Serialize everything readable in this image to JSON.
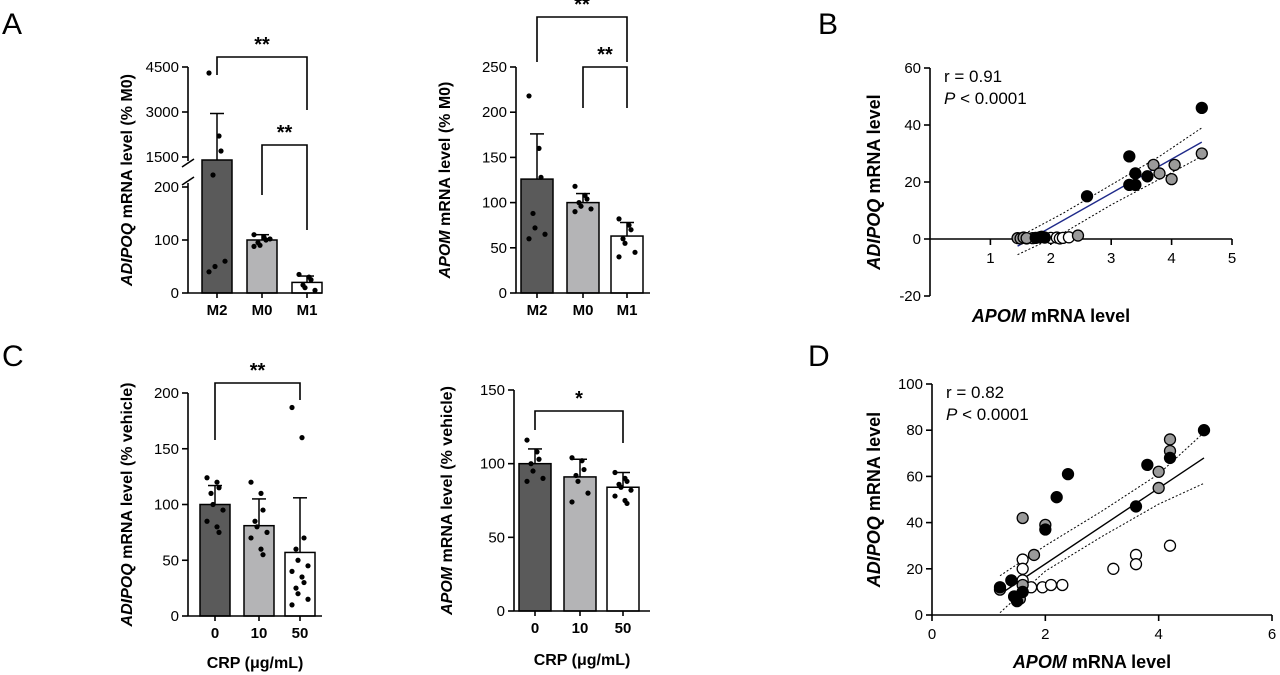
{
  "panel_letters": [
    "A",
    "B",
    "C",
    "D"
  ],
  "chart_data": [
    {
      "id": "A1",
      "type": "bar",
      "categories": [
        "M2",
        "M0",
        "M1"
      ],
      "values": [
        1400,
        100,
        20
      ],
      "errors": [
        1550,
        10,
        12
      ],
      "points": [
        [
          4300,
          2200,
          1700,
          900,
          50,
          60,
          40
        ],
        [
          110,
          105,
          100,
          95,
          90,
          102,
          88
        ],
        [
          35,
          30,
          25,
          15,
          10,
          5
        ]
      ],
      "ylabel_italic": "ADIPOQ",
      "ylabel_rest": " mRNA level (% M0)",
      "broken_axis": true,
      "lower_ticks": [
        "0",
        "100",
        "200"
      ],
      "upper_ticks": [
        "1500",
        "3000",
        "4500"
      ],
      "significance": [
        {
          "from": 0,
          "to": 2,
          "label": "**"
        },
        {
          "from": 1,
          "to": 2,
          "label": "**"
        }
      ],
      "colors": [
        "#5a5a5a",
        "#b4b4b6",
        "#ffffff"
      ]
    },
    {
      "id": "A2",
      "type": "bar",
      "categories": [
        "M2",
        "M0",
        "M1"
      ],
      "values": [
        126,
        100,
        63
      ],
      "errors": [
        50,
        10,
        15
      ],
      "points": [
        [
          218,
          160,
          128,
          88,
          72,
          65,
          60
        ],
        [
          118,
          108,
          104,
          100,
          96,
          93,
          90
        ],
        [
          82,
          75,
          70,
          60,
          55,
          45,
          40
        ]
      ],
      "ylabel_italic": "APOM",
      "ylabel_rest": " mRNA level (% M0)",
      "ylim": [
        0,
        250
      ],
      "yticks": [
        0,
        50,
        100,
        150,
        200,
        250
      ],
      "significance": [
        {
          "from": 0,
          "to": 2,
          "label": "**"
        },
        {
          "from": 1,
          "to": 2,
          "label": "**"
        }
      ],
      "colors": [
        "#5a5a5a",
        "#b4b4b6",
        "#ffffff"
      ]
    },
    {
      "id": "B",
      "type": "scatter",
      "xlim": [
        0,
        5
      ],
      "ylim": [
        -20,
        60
      ],
      "xticks": [
        1,
        2,
        3,
        4,
        5
      ],
      "yticks": [
        -20,
        0,
        20,
        40,
        60
      ],
      "xlabel_italic": "APOM",
      "xlabel_rest": " mRNA level",
      "ylabel_italic": "ADIPOQ",
      "ylabel_rest": " mRNA level",
      "r_text": "r = 0.91",
      "p_italic": "P",
      "p_rest": " < 0.0001",
      "fit": {
        "x": [
          1.45,
          4.5
        ],
        "y": [
          -2.5,
          34
        ]
      },
      "ci_upper": {
        "x": [
          1.45,
          2.2,
          3.0,
          3.8,
          4.5
        ],
        "y": [
          0.5,
          9,
          19,
          29,
          39
        ]
      },
      "ci_lower": {
        "x": [
          1.45,
          2.2,
          3.0,
          3.8,
          4.5
        ],
        "y": [
          -5.5,
          2,
          12,
          21,
          29
        ]
      },
      "black": [
        [
          1.75,
          0.4
        ],
        [
          1.82,
          0.6
        ],
        [
          1.9,
          0.5
        ],
        [
          2.6,
          15
        ],
        [
          3.3,
          29
        ],
        [
          3.3,
          19
        ],
        [
          3.4,
          23
        ],
        [
          3.4,
          19
        ],
        [
          3.6,
          22
        ],
        [
          4.5,
          46
        ]
      ],
      "gray": [
        [
          1.45,
          0.3
        ],
        [
          1.5,
          0.2
        ],
        [
          1.55,
          0.5
        ],
        [
          1.6,
          0.3
        ],
        [
          1.85,
          0.8
        ],
        [
          2.45,
          1.2
        ],
        [
          3.7,
          26
        ],
        [
          3.8,
          23
        ],
        [
          4.0,
          21
        ],
        [
          4.05,
          26
        ],
        [
          4.5,
          30
        ]
      ],
      "white": [
        [
          1.6,
          0.2
        ],
        [
          1.7,
          0.3
        ],
        [
          2.0,
          0.4
        ],
        [
          2.1,
          0.5
        ],
        [
          2.15,
          0.2
        ],
        [
          2.2,
          0.4
        ],
        [
          2.3,
          0.6
        ]
      ],
      "line_color": "#1f2a8a"
    },
    {
      "id": "C1",
      "type": "bar",
      "categories": [
        "0",
        "10",
        "50"
      ],
      "values": [
        100,
        81,
        57
      ],
      "errors": [
        17,
        24,
        49
      ],
      "points": [
        [
          124,
          120,
          115,
          110,
          100,
          95,
          85,
          80,
          75
        ],
        [
          120,
          110,
          95,
          85,
          80,
          75,
          70,
          60,
          55
        ],
        [
          187,
          160,
          70,
          60,
          50,
          45,
          40,
          35,
          30,
          25,
          20,
          15,
          10
        ]
      ],
      "ylabel_italic": "ADIPOQ",
      "ylabel_rest": " mRNA level (% vehicle)",
      "xlabel": "CRP (μg/mL)",
      "ylim": [
        0,
        200
      ],
      "yticks": [
        0,
        50,
        100,
        150,
        200
      ],
      "significance": [
        {
          "from": 0,
          "to": 2,
          "label": "**"
        }
      ],
      "colors": [
        "#5a5a5a",
        "#b4b4b6",
        "#ffffff"
      ]
    },
    {
      "id": "C2",
      "type": "bar",
      "categories": [
        "0",
        "10",
        "50"
      ],
      "values": [
        100,
        91,
        84
      ],
      "errors": [
        10,
        12,
        10
      ],
      "points": [
        [
          116,
          108,
          103,
          100,
          95,
          90,
          88
        ],
        [
          104,
          102,
          96,
          92,
          88,
          80,
          74
        ],
        [
          94,
          90,
          88,
          86,
          84,
          82,
          78,
          75,
          73
        ]
      ],
      "ylabel_italic": "APOM",
      "ylabel_rest": " mRNA level (% vehicle)",
      "xlabel": "CRP (μg/mL)",
      "ylim": [
        0,
        150
      ],
      "yticks": [
        0,
        50,
        100,
        150
      ],
      "significance": [
        {
          "from": 0,
          "to": 2,
          "label": "*"
        }
      ],
      "colors": [
        "#5a5a5a",
        "#b4b4b6",
        "#ffffff"
      ]
    },
    {
      "id": "D",
      "type": "scatter",
      "xlim": [
        0,
        6
      ],
      "ylim": [
        0,
        100
      ],
      "xticks": [
        0,
        2,
        4,
        6
      ],
      "yticks": [
        0,
        20,
        40,
        60,
        80,
        100
      ],
      "xlabel_italic": "APOM",
      "xlabel_rest": " mRNA level",
      "ylabel_italic": "ADIPOQ",
      "ylabel_rest": " mRNA level",
      "r_text": "r = 0.82",
      "p_italic": "P",
      "p_rest": " < 0.0001",
      "fit": {
        "x": [
          1.2,
          4.8
        ],
        "y": [
          9,
          68
        ]
      },
      "ci_upper": {
        "x": [
          1.2,
          2.0,
          3.0,
          4.0,
          4.8
        ],
        "y": [
          17,
          30,
          45,
          61,
          79
        ]
      },
      "ci_lower": {
        "x": [
          1.2,
          2.0,
          3.0,
          4.0,
          4.8
        ],
        "y": [
          1,
          19,
          34,
          48,
          57
        ]
      },
      "black": [
        [
          1.2,
          12
        ],
        [
          1.4,
          15
        ],
        [
          1.45,
          8
        ],
        [
          1.5,
          6
        ],
        [
          1.6,
          10
        ],
        [
          2.0,
          37
        ],
        [
          2.2,
          51
        ],
        [
          2.4,
          61
        ],
        [
          3.6,
          47
        ],
        [
          3.8,
          65
        ],
        [
          4.2,
          68
        ],
        [
          4.8,
          80
        ]
      ],
      "gray": [
        [
          1.2,
          11
        ],
        [
          1.45,
          8
        ],
        [
          1.55,
          7
        ],
        [
          1.6,
          42
        ],
        [
          1.6,
          13
        ],
        [
          1.8,
          26
        ],
        [
          2.0,
          39
        ],
        [
          4.0,
          62
        ],
        [
          4.0,
          55
        ],
        [
          4.2,
          76
        ],
        [
          4.2,
          71
        ]
      ],
      "white": [
        [
          1.6,
          24
        ],
        [
          1.6,
          20
        ],
        [
          1.6,
          15
        ],
        [
          1.75,
          12
        ],
        [
          1.95,
          12
        ],
        [
          2.1,
          13
        ],
        [
          2.3,
          13
        ],
        [
          3.2,
          20
        ],
        [
          3.6,
          26
        ],
        [
          3.6,
          22
        ],
        [
          4.2,
          30
        ]
      ],
      "line_color": "#000000"
    }
  ]
}
